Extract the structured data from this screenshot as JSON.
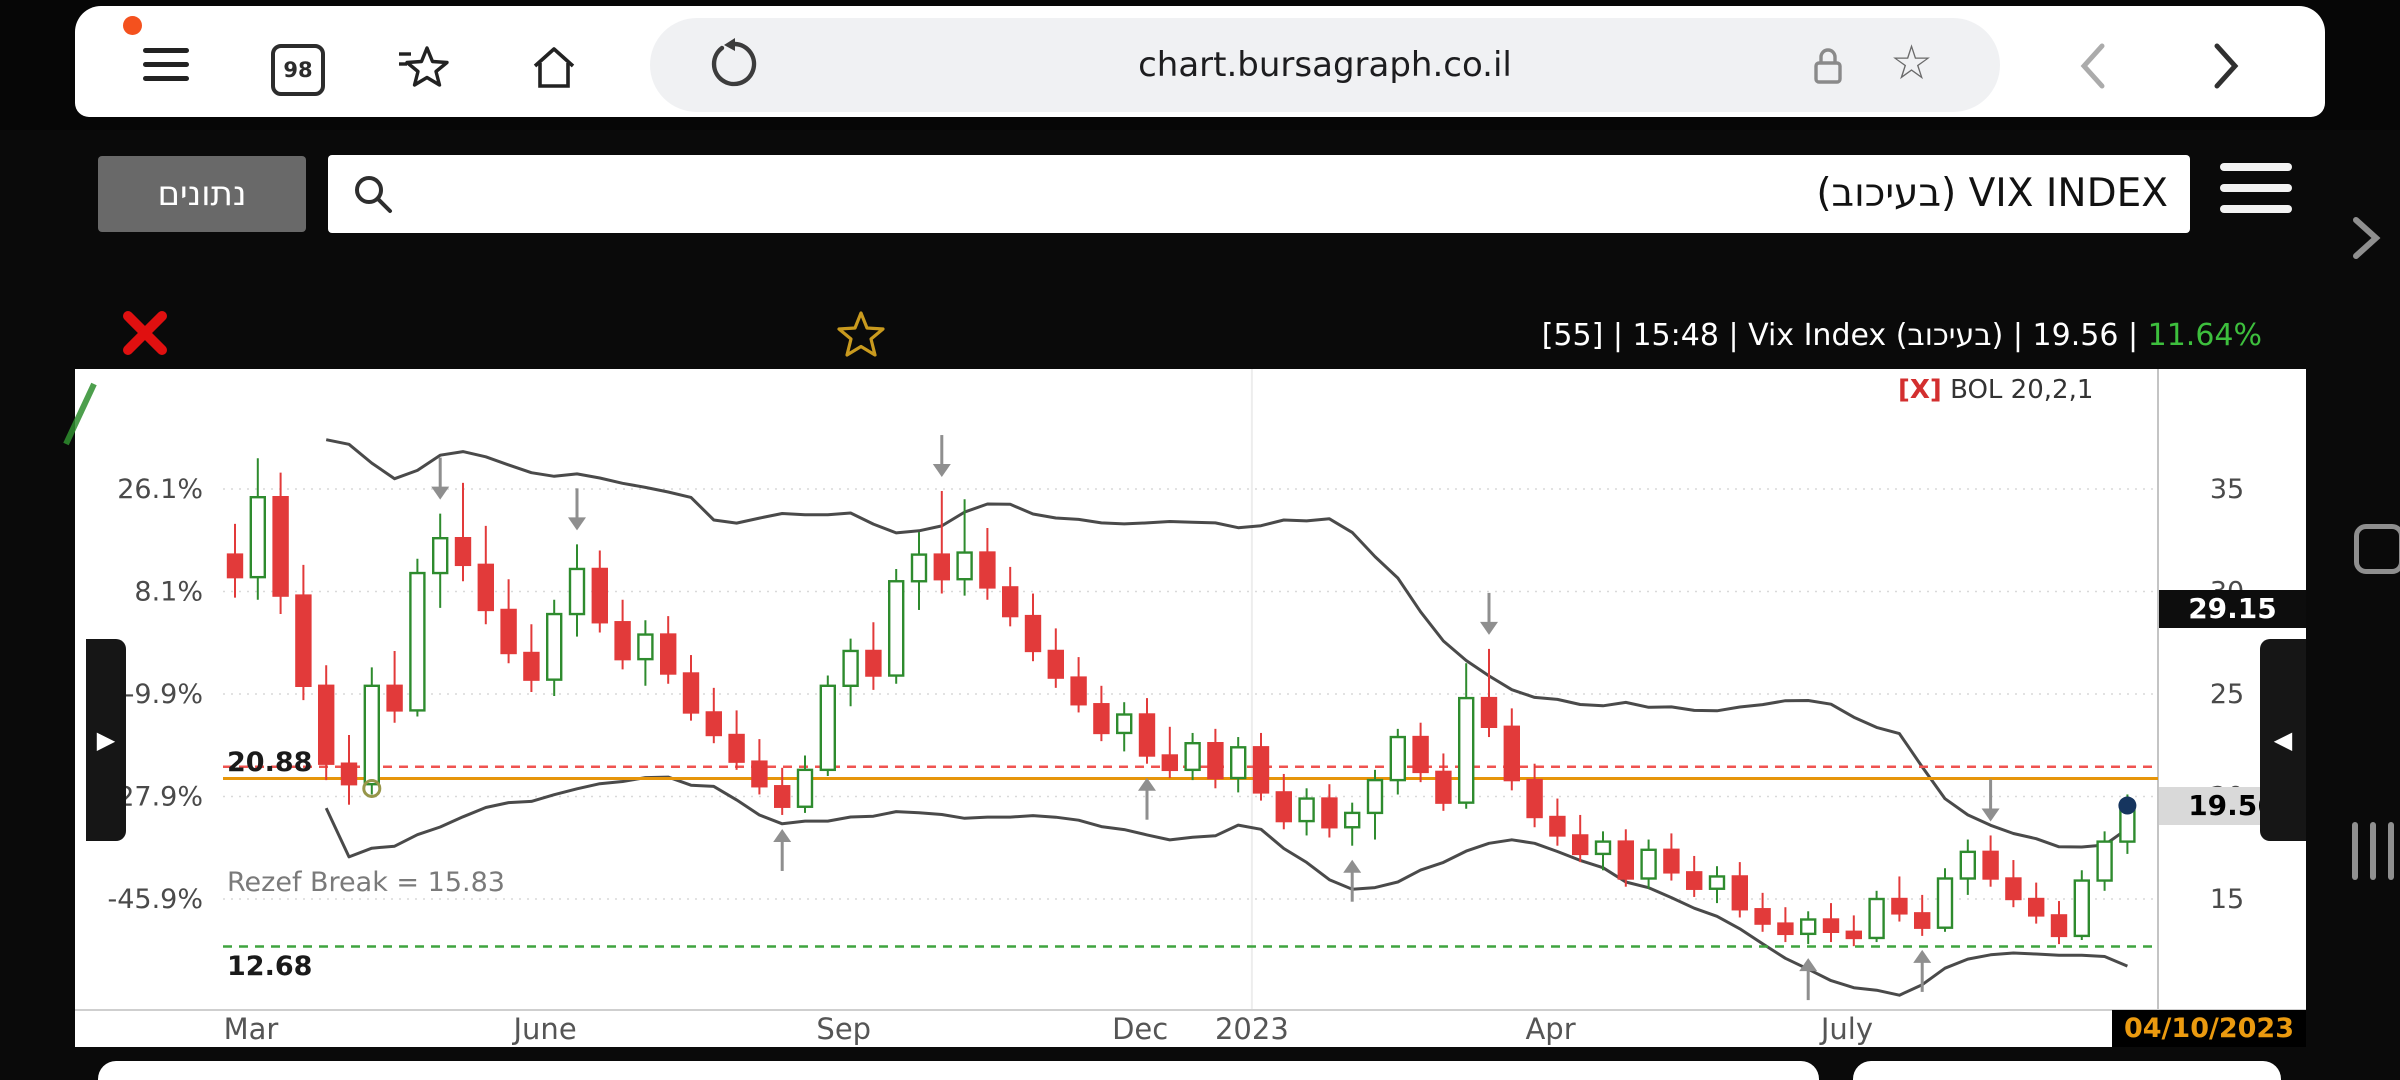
{
  "browser": {
    "url": "chart.bursagraph.co.il",
    "tab_count": "98"
  },
  "site_header": {
    "data_button": "נתונים",
    "title": "VIX INDEX (בעיכוב)"
  },
  "chart_header": {
    "info_prefix": "[55] | 15:48 | Vix Index (בעיכוב) | ",
    "change_pct": "11.64%",
    "info_suffix": " | 19.56"
  },
  "colors": {
    "up": "#2e8b2e",
    "down": "#e23a3a",
    "band": "#4a4a4a",
    "grid": "#d9d9d9",
    "pivot": "#e6950a",
    "support": "#3fa43f",
    "resistance": "#ef5350",
    "accent_green": "#3dbf3d",
    "date_orange": "#eb9a0f",
    "close_red": "#e01010",
    "star_gold": "#c99a1e",
    "arrow_gray": "#8f8f8f"
  },
  "chart_data": {
    "type": "candlestick",
    "title": "Vix Index (בעיכוב)",
    "legend_close_label": "[X]",
    "legend": "BOL 20,2,1",
    "last_time": "15:48",
    "delay_tag": "[55]",
    "change_pct": "11.64%",
    "last_price": 19.56,
    "last_price_label": "19.56",
    "upper_marker_label": "29.15",
    "date_label": "04/10/2023",
    "annotation": "Rezef Break = 15.83",
    "bollinger": {
      "period": 20,
      "mult": 2
    },
    "y_axis": [
      {
        "price": 35,
        "pct": "26.1%"
      },
      {
        "price": 30,
        "pct": "8.1%"
      },
      {
        "price": 25,
        "pct": "-9.9%"
      },
      {
        "price": 20,
        "pct": "-27.9%"
      },
      {
        "price": 15,
        "pct": "-45.9%"
      }
    ],
    "x_axis": [
      {
        "label": "Mar",
        "pos": 0.7
      },
      {
        "label": "June",
        "pos": 13.6
      },
      {
        "label": "Sep",
        "pos": 26.7
      },
      {
        "label": "Dec",
        "pos": 39.7
      },
      {
        "label": "2023",
        "pos": 44.6
      },
      {
        "label": "Apr",
        "pos": 57.7
      },
      {
        "label": "July",
        "pos": 70.7
      }
    ],
    "ref_lines": {
      "resistance": {
        "price": 21.45,
        "label": "",
        "style": "dashed"
      },
      "pivot": {
        "price": 20.88,
        "label": "20.88",
        "style": "solid"
      },
      "support": {
        "price": 12.68,
        "label": "12.68",
        "style": "dashed"
      }
    },
    "arrows_down": [
      9,
      15,
      31,
      55,
      77
    ],
    "arrows_up": [
      24,
      40,
      49,
      69,
      74
    ],
    "ring_marker_index": 6,
    "candles": [
      [
        31.8,
        33.3,
        29.7,
        30.7
      ],
      [
        30.7,
        36.5,
        29.6,
        34.6
      ],
      [
        34.6,
        35.8,
        28.9,
        29.8
      ],
      [
        29.8,
        31.3,
        24.7,
        25.4
      ],
      [
        25.4,
        26.4,
        20.8,
        21.6
      ],
      [
        21.6,
        23.0,
        19.6,
        20.6
      ],
      [
        20.6,
        26.3,
        20.1,
        25.4
      ],
      [
        25.4,
        27.1,
        23.6,
        24.2
      ],
      [
        24.2,
        31.6,
        23.9,
        30.9
      ],
      [
        30.9,
        33.8,
        29.2,
        32.6
      ],
      [
        32.6,
        35.3,
        30.5,
        31.3
      ],
      [
        31.3,
        33.2,
        28.4,
        29.1
      ],
      [
        29.1,
        30.6,
        26.5,
        27.0
      ],
      [
        27.0,
        28.4,
        25.1,
        25.7
      ],
      [
        25.7,
        29.6,
        24.9,
        28.9
      ],
      [
        28.9,
        32.3,
        27.8,
        31.1
      ],
      [
        31.1,
        32.0,
        28.0,
        28.5
      ],
      [
        28.5,
        29.6,
        26.2,
        26.7
      ],
      [
        26.7,
        28.6,
        25.4,
        27.9
      ],
      [
        27.9,
        28.8,
        25.5,
        26.0
      ],
      [
        26.0,
        26.9,
        23.7,
        24.1
      ],
      [
        24.1,
        25.3,
        22.6,
        23.0
      ],
      [
        23.0,
        24.2,
        21.3,
        21.7
      ],
      [
        21.7,
        22.8,
        20.1,
        20.5
      ],
      [
        20.5,
        21.4,
        19.1,
        19.5
      ],
      [
        19.5,
        22.0,
        19.2,
        21.3
      ],
      [
        21.3,
        25.9,
        21.0,
        25.4
      ],
      [
        25.4,
        27.7,
        24.4,
        27.1
      ],
      [
        27.1,
        28.5,
        25.2,
        25.9
      ],
      [
        25.9,
        31.1,
        25.5,
        30.5
      ],
      [
        30.5,
        32.9,
        29.1,
        31.8
      ],
      [
        31.8,
        34.9,
        29.9,
        30.6
      ],
      [
        30.6,
        34.5,
        29.8,
        31.9
      ],
      [
        31.9,
        33.1,
        29.6,
        30.2
      ],
      [
        30.2,
        31.2,
        28.3,
        28.8
      ],
      [
        28.8,
        29.9,
        26.6,
        27.1
      ],
      [
        27.1,
        28.2,
        25.3,
        25.8
      ],
      [
        25.8,
        26.8,
        24.1,
        24.5
      ],
      [
        24.5,
        25.4,
        22.7,
        23.1
      ],
      [
        23.1,
        24.6,
        22.2,
        24.0
      ],
      [
        24.0,
        24.8,
        21.6,
        22.0
      ],
      [
        22.0,
        23.4,
        20.9,
        21.3
      ],
      [
        21.3,
        23.1,
        20.8,
        22.6
      ],
      [
        22.6,
        23.3,
        20.4,
        20.9
      ],
      [
        20.9,
        22.9,
        20.2,
        22.4
      ],
      [
        22.4,
        23.1,
        19.8,
        20.2
      ],
      [
        20.2,
        21.1,
        18.4,
        18.8
      ],
      [
        18.8,
        20.4,
        18.1,
        19.9
      ],
      [
        19.9,
        20.6,
        18.0,
        18.5
      ],
      [
        18.5,
        19.7,
        17.6,
        19.2
      ],
      [
        19.2,
        21.3,
        17.9,
        20.8
      ],
      [
        20.8,
        23.3,
        20.1,
        22.9
      ],
      [
        22.9,
        23.6,
        20.7,
        21.2
      ],
      [
        21.2,
        22.1,
        19.3,
        19.7
      ],
      [
        19.7,
        26.5,
        19.4,
        24.8
      ],
      [
        24.8,
        27.2,
        22.9,
        23.4
      ],
      [
        23.4,
        24.3,
        20.3,
        20.8
      ],
      [
        20.8,
        21.6,
        18.5,
        19.0
      ],
      [
        19.0,
        19.9,
        17.6,
        18.1
      ],
      [
        18.1,
        19.1,
        16.8,
        17.2
      ],
      [
        17.2,
        18.3,
        16.4,
        17.8
      ],
      [
        17.8,
        18.4,
        15.6,
        16.0
      ],
      [
        16.0,
        17.9,
        15.5,
        17.4
      ],
      [
        17.4,
        18.2,
        15.9,
        16.3
      ],
      [
        16.3,
        17.1,
        15.1,
        15.5
      ],
      [
        15.5,
        16.6,
        14.8,
        16.1
      ],
      [
        16.1,
        16.8,
        14.1,
        14.5
      ],
      [
        14.5,
        15.3,
        13.4,
        13.8
      ],
      [
        13.8,
        14.6,
        12.9,
        13.3
      ],
      [
        13.3,
        14.4,
        12.8,
        14.0
      ],
      [
        14.0,
        14.8,
        12.9,
        13.4
      ],
      [
        13.4,
        14.2,
        12.7,
        13.1
      ],
      [
        13.1,
        15.4,
        12.9,
        15.0
      ],
      [
        15.0,
        16.1,
        13.9,
        14.3
      ],
      [
        14.3,
        15.2,
        13.2,
        13.6
      ],
      [
        13.6,
        16.5,
        13.4,
        16.0
      ],
      [
        16.0,
        17.9,
        15.2,
        17.3
      ],
      [
        17.3,
        18.1,
        15.6,
        16.0
      ],
      [
        16.0,
        16.9,
        14.6,
        15.0
      ],
      [
        15.0,
        15.8,
        13.8,
        14.2
      ],
      [
        14.2,
        14.9,
        12.8,
        13.2
      ],
      [
        13.2,
        16.4,
        13.0,
        15.9
      ],
      [
        15.9,
        18.3,
        15.4,
        17.8
      ],
      [
        17.8,
        20.1,
        17.2,
        19.56
      ]
    ]
  }
}
